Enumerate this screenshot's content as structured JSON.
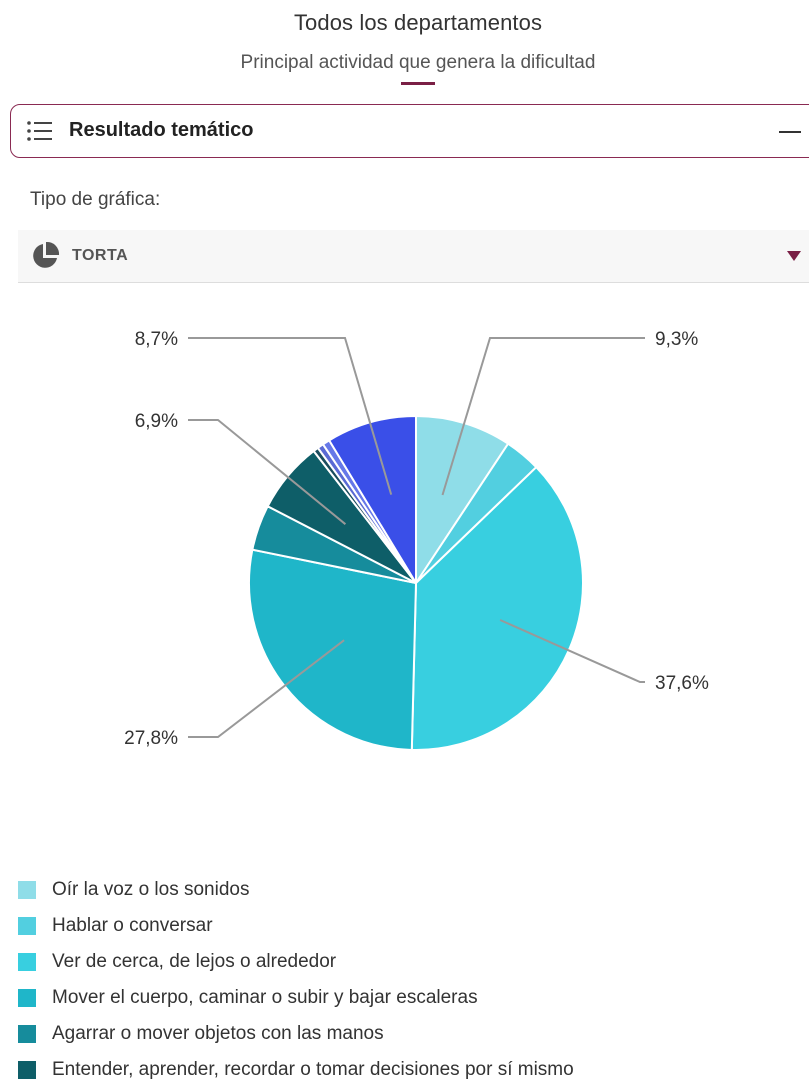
{
  "header": {
    "title": "Todos los departamentos",
    "subtitle": "Principal actividad que genera la dificultad"
  },
  "section": {
    "label": "Resultado temático",
    "icon": "list-icon"
  },
  "chart_type": {
    "label": "Tipo de gráfica:",
    "value": "TORTA",
    "icon": "pie-chart-icon"
  },
  "colors": {
    "accent": "#7a1f45"
  },
  "chart_data": {
    "type": "pie",
    "direction": "clockwise-from-top",
    "slices": [
      {
        "name": "Oír la voz o los sonidos",
        "value": 9.3,
        "label": "9,3%",
        "color": "#8fdde8"
      },
      {
        "name": "Hablar o conversar",
        "value": 3.5,
        "label": "",
        "color": "#52cfe0"
      },
      {
        "name": "Ver de cerca, de lejos o alrededor",
        "value": 37.6,
        "label": "37,6%",
        "color": "#38cfe0"
      },
      {
        "name": "Mover el cuerpo, caminar o subir y bajar escaleras",
        "value": 27.8,
        "label": "27,8%",
        "color": "#1fb6c9"
      },
      {
        "name": "Agarrar o mover objetos con las manos",
        "value": 4.4,
        "label": "",
        "color": "#168c9c"
      },
      {
        "name": "Entender, aprender, recordar o tomar decisiones por sí mismo",
        "value": 6.9,
        "label": "6,9%",
        "color": "#0e5e68"
      },
      {
        "name": "",
        "value": 0.5,
        "label": "",
        "color": "#1a4d5e"
      },
      {
        "name": "",
        "value": 0.6,
        "label": "",
        "color": "#5a6ad4"
      },
      {
        "name": "",
        "value": 0.7,
        "label": "",
        "color": "#6678e8"
      },
      {
        "name": "",
        "value": 8.7,
        "label": "8,7%",
        "color": "#3a4fe8"
      }
    ]
  }
}
